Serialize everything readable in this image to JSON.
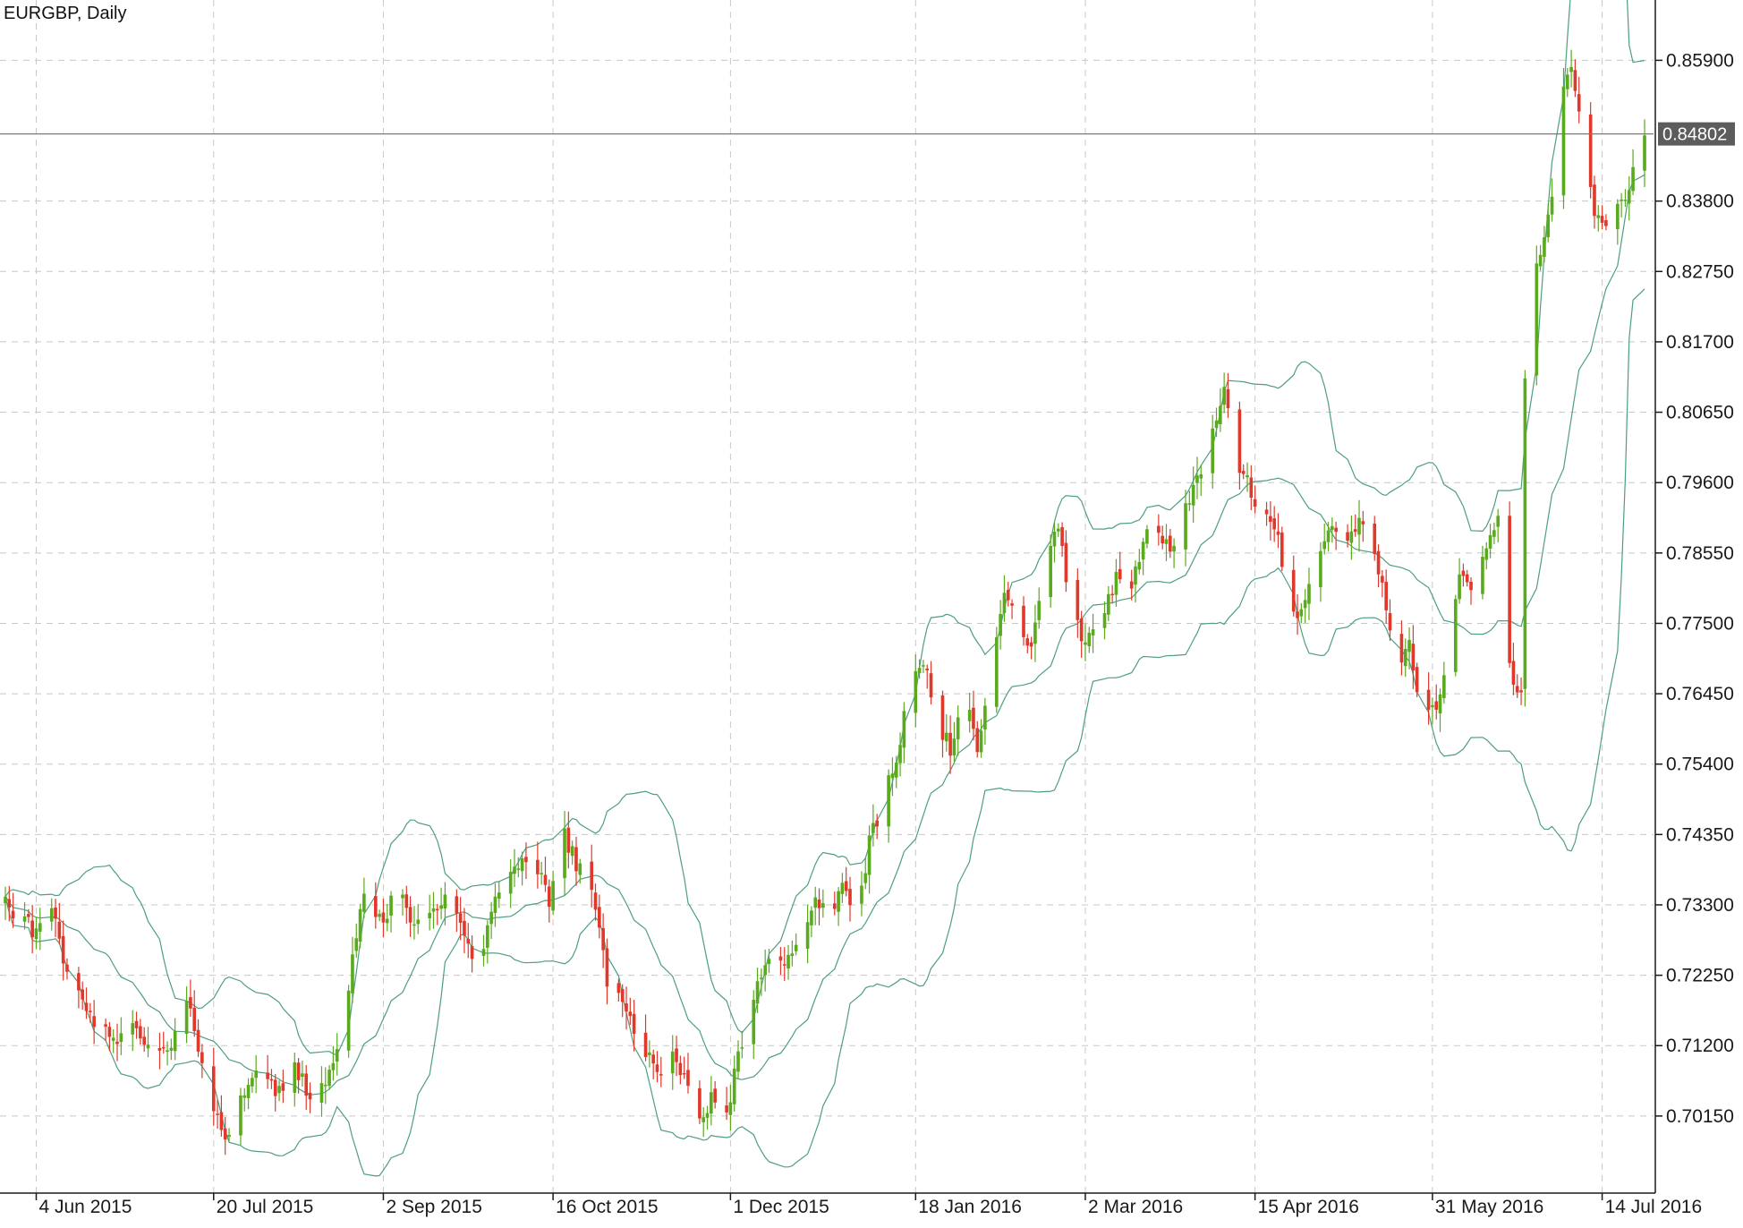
{
  "chart_data": {
    "type": "candlestick",
    "title": "EURGBP, Daily",
    "symbol": "EURGBP",
    "timeframe": "Daily",
    "x_start": "2015-05-27",
    "x_end": "2016-07-25",
    "ylim": [
      0.69,
      0.868
    ],
    "y_ticks": [
      0.859,
      0.838,
      0.8275,
      0.817,
      0.8065,
      0.796,
      0.7855,
      0.775,
      0.7645,
      0.754,
      0.7435,
      0.733,
      0.7225,
      0.712,
      0.7015
    ],
    "y_tick_labels": [
      "0.85900",
      "0.83800",
      "0.82750",
      "0.81700",
      "0.80650",
      "0.79600",
      "0.78550",
      "0.77500",
      "0.76450",
      "0.75400",
      "0.74350",
      "0.73300",
      "0.72250",
      "0.71200",
      "0.70150"
    ],
    "x_ticks": [
      "4 Jun 2015",
      "20 Jul 2015",
      "2 Sep 2015",
      "16 Oct 2015",
      "1 Dec 2015",
      "18 Jan 2016",
      "2 Mar 2016",
      "15 Apr 2016",
      "31 May 2016",
      "14 Jul 2016"
    ],
    "x_tick_dates": [
      "2015-06-04",
      "2015-07-20",
      "2015-09-02",
      "2015-10-16",
      "2015-12-01",
      "2016-01-18",
      "2016-03-02",
      "2016-04-15",
      "2016-05-31",
      "2016-07-14"
    ],
    "current_price": "0.84802",
    "current_price_value": 0.84802,
    "grid": true,
    "indicator": "Bollinger Bands",
    "colors": {
      "bull": "#5aaa1e",
      "bear": "#e0392b",
      "bands": "#4e9e80",
      "grid": "#c8c8c8",
      "price_line": "#7a7a7a",
      "price_tag_bg": "#5c5c5c"
    },
    "close_series": [
      [
        "2015-05-27",
        0.733
      ],
      [
        "2015-06-04",
        0.729
      ],
      [
        "2015-06-08",
        0.732
      ],
      [
        "2015-06-12",
        0.7235
      ],
      [
        "2015-06-18",
        0.717
      ],
      [
        "2015-06-24",
        0.712
      ],
      [
        "2015-06-29",
        0.715
      ],
      [
        "2015-07-03",
        0.711
      ],
      [
        "2015-07-09",
        0.713
      ],
      [
        "2015-07-13",
        0.72
      ],
      [
        "2015-07-17",
        0.708
      ],
      [
        "2015-07-22",
        0.7
      ],
      [
        "2015-07-24",
        0.6985
      ],
      [
        "2015-07-28",
        0.7055
      ],
      [
        "2015-08-01",
        0.711
      ],
      [
        "2015-08-05",
        0.705
      ],
      [
        "2015-08-10",
        0.709
      ],
      [
        "2015-08-14",
        0.704
      ],
      [
        "2015-08-18",
        0.707
      ],
      [
        "2015-08-22",
        0.713
      ],
      [
        "2015-08-25",
        0.725
      ],
      [
        "2015-08-28",
        0.734
      ],
      [
        "2015-09-02",
        0.73
      ],
      [
        "2015-09-06",
        0.736
      ],
      [
        "2015-09-10",
        0.729
      ],
      [
        "2015-09-14",
        0.732
      ],
      [
        "2015-09-18",
        0.735
      ],
      [
        "2015-09-22",
        0.73
      ],
      [
        "2015-09-26",
        0.722
      ],
      [
        "2015-09-30",
        0.733
      ],
      [
        "2015-10-04",
        0.737
      ],
      [
        "2015-10-08",
        0.74
      ],
      [
        "2015-10-12",
        0.738
      ],
      [
        "2015-10-15",
        0.734
      ],
      [
        "2015-10-19",
        0.743
      ],
      [
        "2015-10-23",
        0.738
      ],
      [
        "2015-10-27",
        0.733
      ],
      [
        "2015-10-30",
        0.721
      ],
      [
        "2015-11-04",
        0.717
      ],
      [
        "2015-11-08",
        0.712
      ],
      [
        "2015-11-12",
        0.708
      ],
      [
        "2015-11-16",
        0.712
      ],
      [
        "2015-11-20",
        0.706
      ],
      [
        "2015-11-23",
        0.702
      ],
      [
        "2015-11-26",
        0.704
      ],
      [
        "2015-11-30",
        0.702
      ],
      [
        "2015-12-03",
        0.71
      ],
      [
        "2015-12-07",
        0.72
      ],
      [
        "2015-12-11",
        0.725
      ],
      [
        "2015-12-15",
        0.723
      ],
      [
        "2015-12-19",
        0.728
      ],
      [
        "2015-12-23",
        0.734
      ],
      [
        "2015-12-26",
        0.731
      ],
      [
        "2015-12-30",
        0.736
      ],
      [
        "2016-01-03",
        0.731
      ],
      [
        "2016-01-06",
        0.742
      ],
      [
        "2016-01-09",
        0.748
      ],
      [
        "2016-01-13",
        0.754
      ],
      [
        "2016-01-16",
        0.765
      ],
      [
        "2016-01-20",
        0.77
      ],
      [
        "2016-01-24",
        0.76
      ],
      [
        "2016-01-27",
        0.756
      ],
      [
        "2016-01-31",
        0.765
      ],
      [
        "2016-02-03",
        0.756
      ],
      [
        "2016-02-07",
        0.768
      ],
      [
        "2016-02-10",
        0.78
      ],
      [
        "2016-02-13",
        0.776
      ],
      [
        "2016-02-17",
        0.772
      ],
      [
        "2016-02-20",
        0.782
      ],
      [
        "2016-02-24",
        0.79
      ],
      [
        "2016-02-27",
        0.778
      ],
      [
        "2016-03-02",
        0.772
      ],
      [
        "2016-03-06",
        0.774
      ],
      [
        "2016-03-10",
        0.783
      ],
      [
        "2016-03-14",
        0.78
      ],
      [
        "2016-03-17",
        0.787
      ],
      [
        "2016-03-20",
        0.79
      ],
      [
        "2016-03-24",
        0.786
      ],
      [
        "2016-03-28",
        0.792
      ],
      [
        "2016-04-01",
        0.798
      ],
      [
        "2016-04-04",
        0.805
      ],
      [
        "2016-04-07",
        0.809
      ],
      [
        "2016-04-11",
        0.798
      ],
      [
        "2016-04-14",
        0.795
      ],
      [
        "2016-04-18",
        0.79
      ],
      [
        "2016-04-21",
        0.787
      ],
      [
        "2016-04-25",
        0.776
      ],
      [
        "2016-04-28",
        0.778
      ],
      [
        "2016-05-02",
        0.786
      ],
      [
        "2016-05-05",
        0.79
      ],
      [
        "2016-05-09",
        0.788
      ],
      [
        "2016-05-12",
        0.79
      ],
      [
        "2016-05-16",
        0.786
      ],
      [
        "2016-05-19",
        0.778
      ],
      [
        "2016-05-22",
        0.766
      ],
      [
        "2016-05-25",
        0.772
      ],
      [
        "2016-05-28",
        0.76
      ],
      [
        "2016-06-01",
        0.762
      ],
      [
        "2016-06-04",
        0.772
      ],
      [
        "2016-06-07",
        0.783
      ],
      [
        "2016-06-11",
        0.78
      ],
      [
        "2016-06-14",
        0.786
      ],
      [
        "2016-06-17",
        0.791
      ],
      [
        "2016-06-20",
        0.768
      ],
      [
        "2016-06-23",
        0.764
      ],
      [
        "2016-06-24",
        0.811
      ],
      [
        "2016-06-27",
        0.828
      ],
      [
        "2016-07-01",
        0.839
      ],
      [
        "2016-07-04",
        0.854
      ],
      [
        "2016-07-06",
        0.858
      ],
      [
        "2016-07-09",
        0.848
      ],
      [
        "2016-07-12",
        0.836
      ],
      [
        "2016-07-15",
        0.834
      ],
      [
        "2016-07-18",
        0.838
      ],
      [
        "2016-07-21",
        0.84
      ],
      [
        "2016-07-23",
        0.846
      ],
      [
        "2016-07-25",
        0.848
      ]
    ]
  }
}
